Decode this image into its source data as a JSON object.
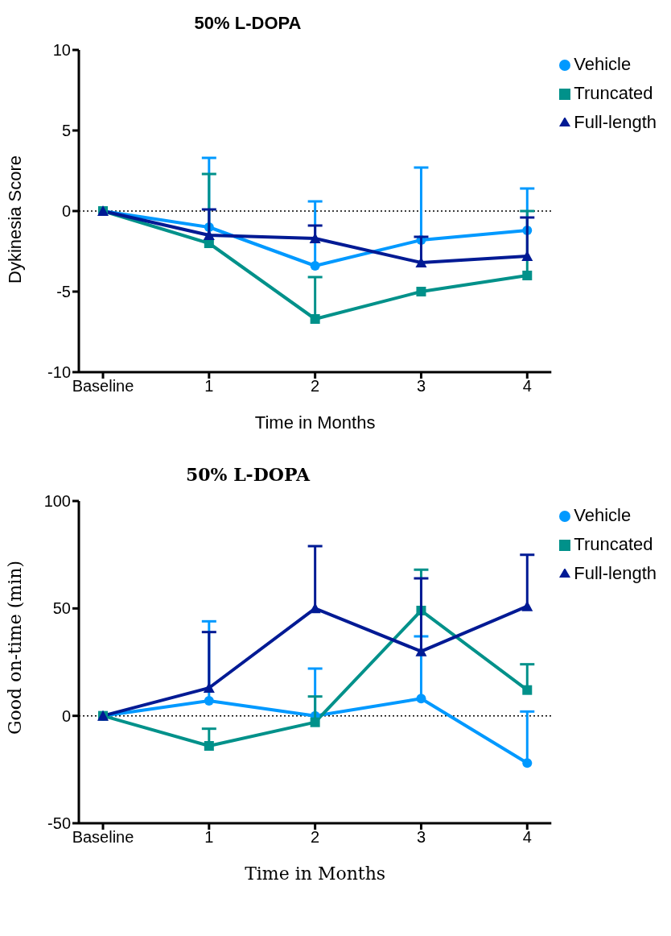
{
  "chart_data": [
    {
      "type": "line",
      "title": "50% L-DOPA",
      "xlabel": "Time in Months",
      "ylabel": "Dykinesia Score",
      "categories": [
        "Baseline",
        "1",
        "2",
        "3",
        "4"
      ],
      "ylim": [
        -10,
        10
      ],
      "yticks": [
        -10,
        -5,
        0,
        5,
        10
      ],
      "grid": false,
      "legend": "top right",
      "line_style": "solid",
      "ref_lines": [
        {
          "axis": "y",
          "value": 0,
          "line_style": "dotted",
          "color": "#000000"
        }
      ],
      "series": [
        {
          "name": "Vehicle",
          "color": "#0099ff",
          "marker": "circle",
          "values": [
            0,
            -1.0,
            -3.4,
            -1.8,
            -1.2
          ],
          "errors": [
            null,
            [
              -1.0,
              3.3
            ],
            [
              -3.4,
              0.6
            ],
            [
              -1.8,
              2.7
            ],
            [
              -1.2,
              1.4
            ]
          ]
        },
        {
          "name": "Truncated",
          "color": "#00918a",
          "marker": "square",
          "values": [
            0,
            -2.0,
            -6.7,
            -5.0,
            -4.0
          ],
          "errors": [
            null,
            [
              -2.0,
              2.3
            ],
            [
              -6.7,
              -4.1
            ],
            null,
            [
              -4.0,
              0.0
            ]
          ]
        },
        {
          "name": "Full-length",
          "color": "#001a94",
          "marker": "triangle",
          "values": [
            0,
            -1.5,
            -1.7,
            -3.2,
            -2.8
          ],
          "errors": [
            null,
            [
              -1.5,
              0.1
            ],
            [
              -1.7,
              -0.9
            ],
            [
              -3.2,
              -1.6
            ],
            [
              -2.8,
              -0.4
            ]
          ]
        }
      ]
    },
    {
      "type": "line",
      "title": "50% L-DOPA",
      "xlabel": "Time in Months",
      "ylabel": "Good on-time (min)",
      "categories": [
        "Baseline",
        "1",
        "2",
        "3",
        "4"
      ],
      "ylim": [
        -50,
        100
      ],
      "yticks": [
        -50,
        0,
        50,
        100
      ],
      "grid": false,
      "legend": "top right",
      "line_style": "solid",
      "ref_lines": [
        {
          "axis": "y",
          "value": 0,
          "line_style": "dotted",
          "color": "#000000"
        }
      ],
      "series": [
        {
          "name": "Vehicle",
          "color": "#0099ff",
          "marker": "circle",
          "values": [
            0,
            7,
            0,
            8,
            -22
          ],
          "errors": [
            null,
            [
              7,
              44
            ],
            [
              0,
              22
            ],
            [
              8,
              37
            ],
            [
              -22,
              2
            ]
          ]
        },
        {
          "name": "Truncated",
          "color": "#00918a",
          "marker": "square",
          "values": [
            0,
            -14,
            -3,
            49,
            12
          ],
          "errors": [
            null,
            [
              -14,
              -6
            ],
            [
              -3,
              9
            ],
            [
              49,
              68
            ],
            [
              12,
              24
            ]
          ]
        },
        {
          "name": "Full-length",
          "color": "#001a94",
          "marker": "triangle",
          "values": [
            0,
            13,
            50,
            30,
            51
          ],
          "errors": [
            null,
            [
              13,
              39
            ],
            [
              50,
              79
            ],
            [
              30,
              64
            ],
            [
              51,
              75
            ]
          ]
        }
      ]
    }
  ]
}
